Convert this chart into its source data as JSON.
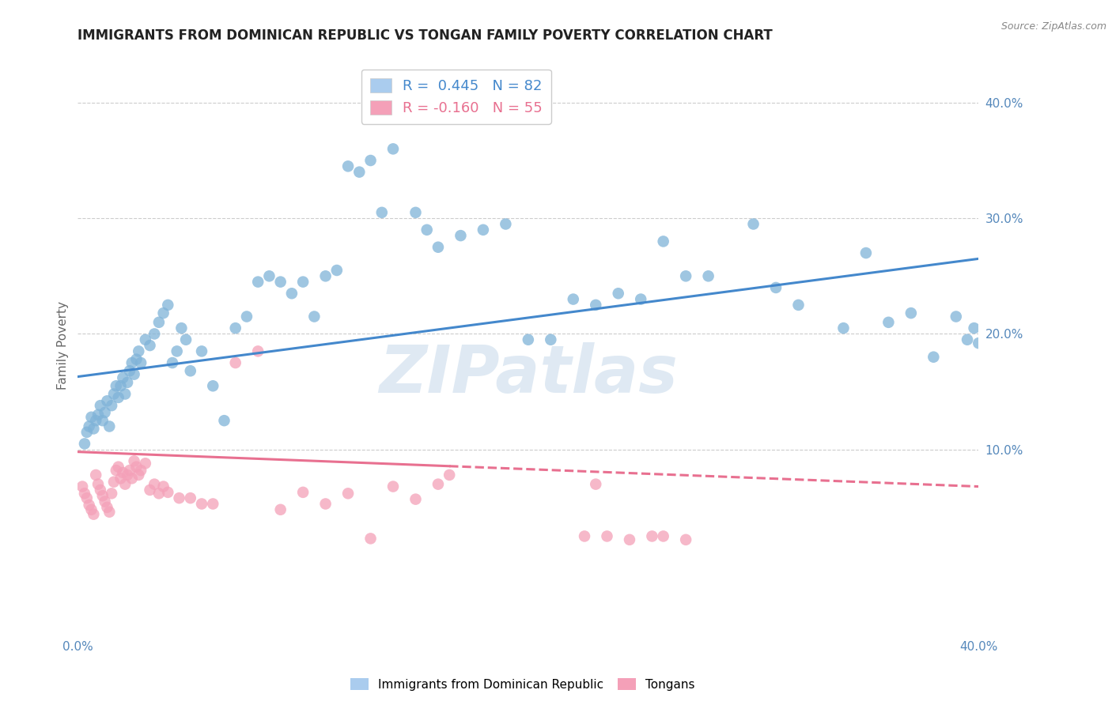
{
  "title": "IMMIGRANTS FROM DOMINICAN REPUBLIC VS TONGAN FAMILY POVERTY CORRELATION CHART",
  "source": "Source: ZipAtlas.com",
  "ylabel": "Family Poverty",
  "xlim": [
    0.0,
    0.4
  ],
  "ylim": [
    -0.06,
    0.44
  ],
  "xtick_positions": [
    0.0,
    0.1,
    0.2,
    0.3,
    0.4
  ],
  "xtick_labels": [
    "0.0%",
    "10.0%",
    "20.0%",
    "30.0%",
    "40.0%"
  ],
  "ytick_positions": [
    0.1,
    0.2,
    0.3,
    0.4
  ],
  "ytick_labels": [
    "10.0%",
    "20.0%",
    "30.0%",
    "40.0%"
  ],
  "series1_color": "#7fb3d8",
  "series2_color": "#f4a0b8",
  "line1_color": "#4488cc",
  "line2_color": "#e87090",
  "legend1_patch_color": "#aaccee",
  "legend2_patch_color": "#f4a0b8",
  "background_color": "#ffffff",
  "grid_color": "#cccccc",
  "watermark_text": "ZIPatlas",
  "watermark_color": "#c5d8ea",
  "axis_label_color": "#5588bb",
  "title_color": "#222222",
  "source_color": "#888888",
  "line1_intercept": 0.163,
  "line1_slope": 0.255,
  "line2_intercept": 0.098,
  "line2_slope": -0.075,
  "line2_solid_end": 0.165,
  "series1_x": [
    0.003,
    0.004,
    0.005,
    0.006,
    0.007,
    0.008,
    0.009,
    0.01,
    0.011,
    0.012,
    0.013,
    0.014,
    0.015,
    0.016,
    0.017,
    0.018,
    0.019,
    0.02,
    0.021,
    0.022,
    0.023,
    0.024,
    0.025,
    0.026,
    0.027,
    0.028,
    0.03,
    0.032,
    0.034,
    0.036,
    0.038,
    0.04,
    0.042,
    0.044,
    0.046,
    0.048,
    0.05,
    0.055,
    0.06,
    0.065,
    0.07,
    0.075,
    0.08,
    0.085,
    0.09,
    0.095,
    0.1,
    0.105,
    0.11,
    0.115,
    0.12,
    0.125,
    0.13,
    0.135,
    0.14,
    0.15,
    0.155,
    0.16,
    0.17,
    0.18,
    0.19,
    0.2,
    0.21,
    0.22,
    0.23,
    0.24,
    0.25,
    0.26,
    0.27,
    0.28,
    0.3,
    0.31,
    0.32,
    0.34,
    0.35,
    0.36,
    0.37,
    0.38,
    0.39,
    0.395,
    0.398,
    0.4
  ],
  "series1_y": [
    0.105,
    0.115,
    0.12,
    0.128,
    0.118,
    0.125,
    0.13,
    0.138,
    0.125,
    0.132,
    0.142,
    0.12,
    0.138,
    0.148,
    0.155,
    0.145,
    0.155,
    0.162,
    0.148,
    0.158,
    0.168,
    0.175,
    0.165,
    0.178,
    0.185,
    0.175,
    0.195,
    0.19,
    0.2,
    0.21,
    0.218,
    0.225,
    0.175,
    0.185,
    0.205,
    0.195,
    0.168,
    0.185,
    0.155,
    0.125,
    0.205,
    0.215,
    0.245,
    0.25,
    0.245,
    0.235,
    0.245,
    0.215,
    0.25,
    0.255,
    0.345,
    0.34,
    0.35,
    0.305,
    0.36,
    0.305,
    0.29,
    0.275,
    0.285,
    0.29,
    0.295,
    0.195,
    0.195,
    0.23,
    0.225,
    0.235,
    0.23,
    0.28,
    0.25,
    0.25,
    0.295,
    0.24,
    0.225,
    0.205,
    0.27,
    0.21,
    0.218,
    0.18,
    0.215,
    0.195,
    0.205,
    0.192
  ],
  "series2_x": [
    0.002,
    0.003,
    0.004,
    0.005,
    0.006,
    0.007,
    0.008,
    0.009,
    0.01,
    0.011,
    0.012,
    0.013,
    0.014,
    0.015,
    0.016,
    0.017,
    0.018,
    0.019,
    0.02,
    0.021,
    0.022,
    0.023,
    0.024,
    0.025,
    0.026,
    0.027,
    0.028,
    0.03,
    0.032,
    0.034,
    0.036,
    0.038,
    0.04,
    0.045,
    0.05,
    0.055,
    0.06,
    0.07,
    0.08,
    0.09,
    0.1,
    0.11,
    0.12,
    0.13,
    0.14,
    0.15,
    0.16,
    0.165,
    0.225,
    0.23,
    0.235,
    0.245,
    0.255,
    0.26,
    0.27
  ],
  "series2_y": [
    0.068,
    0.062,
    0.058,
    0.052,
    0.048,
    0.044,
    0.078,
    0.07,
    0.065,
    0.06,
    0.055,
    0.05,
    0.046,
    0.062,
    0.072,
    0.082,
    0.085,
    0.075,
    0.08,
    0.07,
    0.078,
    0.082,
    0.075,
    0.09,
    0.085,
    0.078,
    0.082,
    0.088,
    0.065,
    0.07,
    0.062,
    0.068,
    0.063,
    0.058,
    0.058,
    0.053,
    0.053,
    0.175,
    0.185,
    0.048,
    0.063,
    0.053,
    0.062,
    0.023,
    0.068,
    0.057,
    0.07,
    0.078,
    0.025,
    0.07,
    0.025,
    0.022,
    0.025,
    0.025,
    0.022
  ]
}
